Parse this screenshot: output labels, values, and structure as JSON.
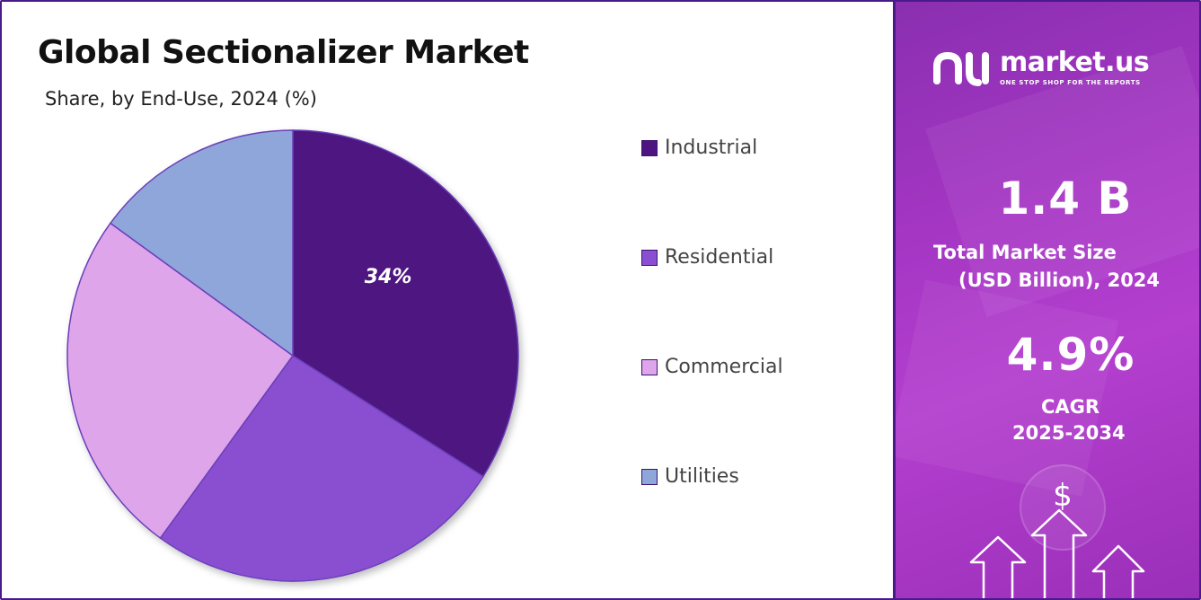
{
  "header": {
    "title": "Global Sectionalizer Market",
    "subtitle": "Share, by End-Use, 2024 (%)"
  },
  "chart_data": {
    "type": "pie",
    "categories": [
      "Industrial",
      "Residential",
      "Commercial",
      "Utilities"
    ],
    "values": [
      34,
      26,
      25,
      15
    ],
    "colors": [
      "#4e1580",
      "#8a4fd1",
      "#dea5eb",
      "#8fa6db"
    ],
    "data_labels": [
      "34%",
      "",
      "",
      ""
    ],
    "legend_position": "right"
  },
  "brand": {
    "name": "market.us",
    "tagline": "ONE STOP SHOP FOR THE REPORTS",
    "logo_icon": "market-us-logo-icon"
  },
  "stats": {
    "market_size_value": "1.4 B",
    "market_size_label_line1": "Total Market Size",
    "market_size_label_line2": "(USD Billion), 2024",
    "cagr_value": "4.9%",
    "cagr_label_line1": "CAGR",
    "cagr_label_line2": "2025-2034"
  },
  "decor": {
    "dollar_symbol": "$",
    "icons": [
      "dollar-icon",
      "up-arrow-icon"
    ]
  },
  "colors": {
    "accent_dark": "#4a1a8c",
    "panel_gradient": [
      "#8a2fb0",
      "#b43fcf"
    ]
  }
}
